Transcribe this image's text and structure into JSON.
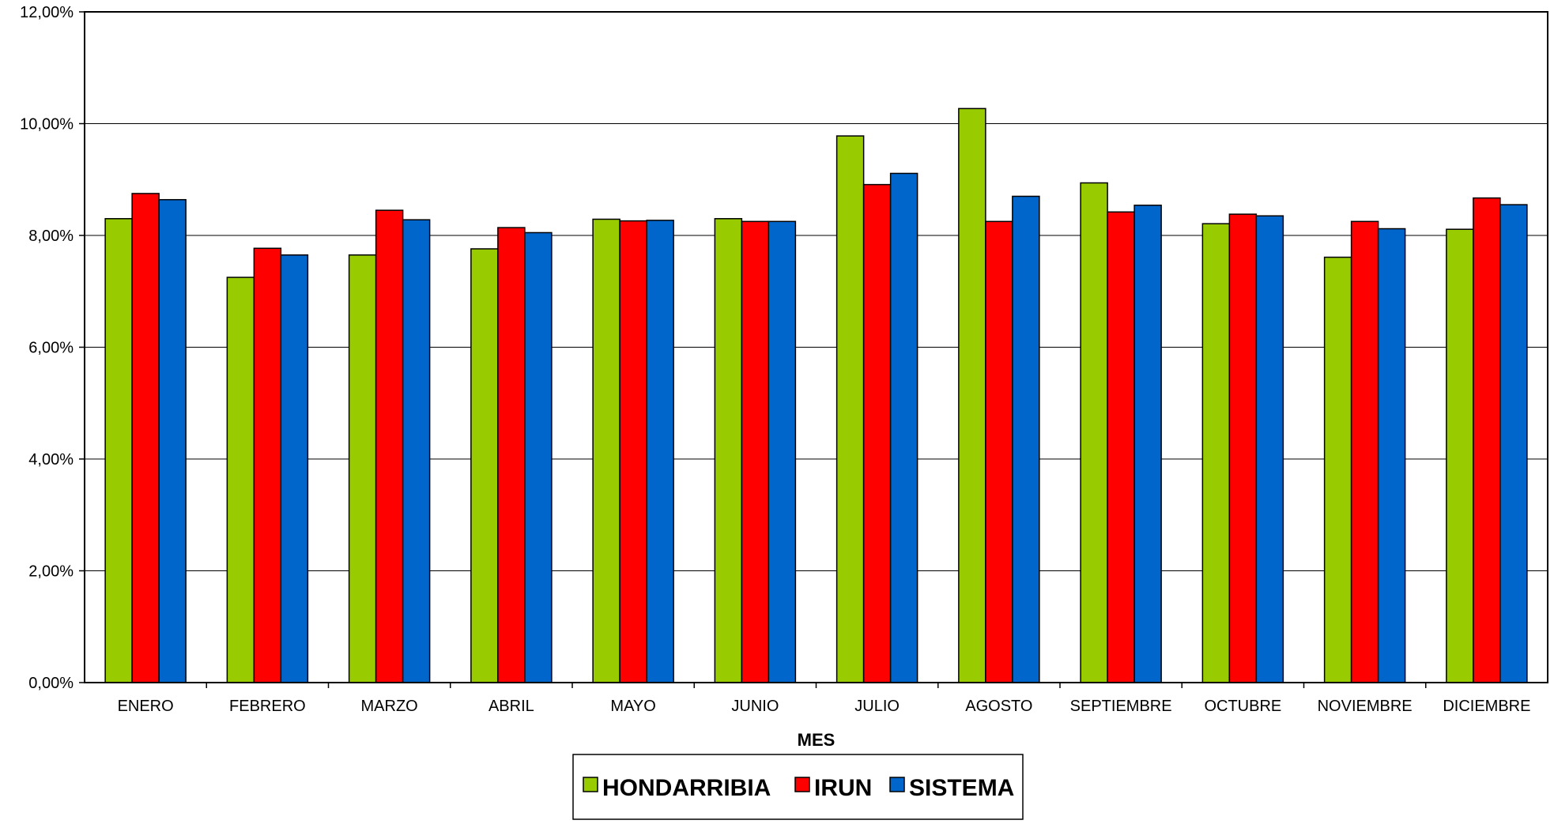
{
  "chart_data": {
    "type": "bar",
    "title": "",
    "xlabel": "MES",
    "ylabel": "",
    "ylim": [
      0,
      12
    ],
    "y_ticks": [
      "0,00%",
      "2,00%",
      "4,00%",
      "6,00%",
      "8,00%",
      "10,00%",
      "12,00%"
    ],
    "grid": true,
    "legend_position": "bottom",
    "categories": [
      "ENERO",
      "FEBRERO",
      "MARZO",
      "ABRIL",
      "MAYO",
      "JUNIO",
      "JULIO",
      "AGOSTO",
      "SEPTIEMBRE",
      "OCTUBRE",
      "NOVIEMBRE",
      "DICIEMBRE"
    ],
    "series": [
      {
        "name": "HONDARRIBIA",
        "color": "#99CC00",
        "values": [
          8.3,
          7.25,
          7.65,
          7.76,
          8.29,
          8.3,
          9.78,
          10.27,
          8.94,
          8.21,
          7.61,
          8.11
        ]
      },
      {
        "name": "IRUN",
        "color": "#FF0000",
        "values": [
          8.75,
          7.77,
          8.45,
          8.14,
          8.26,
          8.25,
          8.91,
          8.25,
          8.42,
          8.38,
          8.25,
          8.67
        ]
      },
      {
        "name": "SISTEMA",
        "color": "#0066CC",
        "values": [
          8.64,
          7.65,
          8.28,
          8.05,
          8.27,
          8.25,
          9.11,
          8.7,
          8.54,
          8.35,
          8.12,
          8.55
        ]
      }
    ]
  }
}
